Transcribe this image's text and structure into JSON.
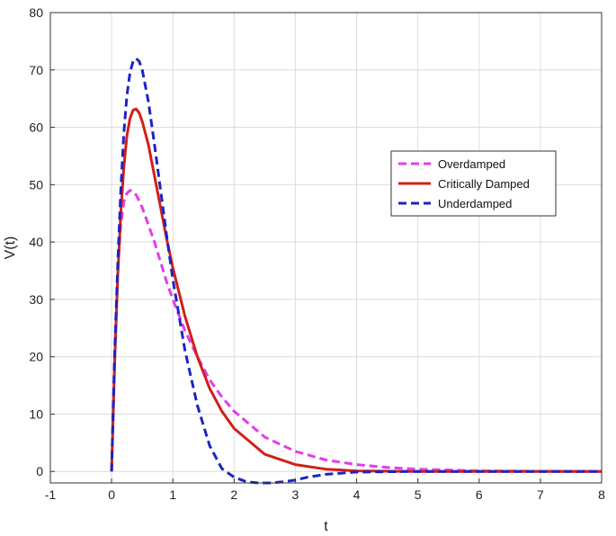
{
  "chart_data": {
    "type": "line",
    "xlabel": "t",
    "ylabel": "V(t)",
    "xlim": [
      -1,
      8
    ],
    "ylim": [
      -2,
      80
    ],
    "xticks": [
      -1,
      0,
      1,
      2,
      3,
      4,
      5,
      6,
      7,
      8
    ],
    "yticks": [
      0,
      10,
      20,
      30,
      40,
      50,
      60,
      70,
      80
    ],
    "xtick_labels": [
      "-1",
      "0",
      "1",
      "2",
      "3",
      "4",
      "5",
      "6",
      "7",
      "8"
    ],
    "ytick_labels": [
      "0",
      "10",
      "20",
      "30",
      "40",
      "50",
      "60",
      "70",
      "80"
    ],
    "grid": true,
    "legend_position": "right",
    "series": [
      {
        "name": "Overdamped",
        "color": "#e23de8",
        "dash": "dashed",
        "x": [
          0,
          0.05,
          0.1,
          0.15,
          0.2,
          0.25,
          0.3,
          0.35,
          0.4,
          0.45,
          0.5,
          0.6,
          0.7,
          0.8,
          0.9,
          1.0,
          1.2,
          1.4,
          1.6,
          1.8,
          2.0,
          2.5,
          3.0,
          3.5,
          4.0,
          4.5,
          5.0,
          6.0,
          7.0,
          8.0
        ],
        "y": [
          0,
          21,
          35,
          43,
          47,
          48.5,
          49,
          48.8,
          48.2,
          47.2,
          46,
          43,
          40,
          36.5,
          33,
          30,
          24.5,
          20,
          16,
          13,
          10.5,
          6,
          3.5,
          2,
          1.2,
          0.7,
          0.4,
          0.12,
          0.04,
          0
        ]
      },
      {
        "name": "Critically Damped",
        "color": "#d0201a",
        "dash": "solid",
        "x": [
          0,
          0.05,
          0.1,
          0.15,
          0.2,
          0.25,
          0.3,
          0.35,
          0.4,
          0.45,
          0.5,
          0.6,
          0.7,
          0.8,
          0.9,
          1.0,
          1.2,
          1.4,
          1.6,
          1.8,
          2.0,
          2.5,
          3.0,
          3.5,
          4.0,
          5.0,
          6.0,
          7.0,
          8.0
        ],
        "y": [
          0,
          19,
          34,
          45,
          53,
          58.5,
          61.5,
          63,
          63.2,
          62.5,
          61,
          57,
          51.5,
          46,
          40.5,
          35.5,
          27,
          20,
          14.5,
          10.5,
          7.5,
          3,
          1.2,
          0.4,
          0.1,
          0,
          0,
          0,
          0
        ]
      },
      {
        "name": "Underdamped",
        "color": "#1f24c2",
        "dash": "dashed",
        "x": [
          0,
          0.05,
          0.1,
          0.15,
          0.2,
          0.25,
          0.3,
          0.35,
          0.4,
          0.45,
          0.5,
          0.6,
          0.7,
          0.8,
          0.9,
          1.0,
          1.2,
          1.4,
          1.6,
          1.8,
          2.0,
          2.2,
          2.4,
          2.6,
          2.8,
          3.0,
          3.2,
          3.5,
          4.0,
          5.0,
          6.0,
          7.0,
          8.0
        ],
        "y": [
          0,
          20,
          36,
          49,
          59,
          65.5,
          69.5,
          71.5,
          72,
          71.5,
          70,
          64.5,
          57,
          49,
          41,
          33.5,
          21,
          11.5,
          4.5,
          0.5,
          -1,
          -1.8,
          -2,
          -2,
          -1.8,
          -1.5,
          -1,
          -0.5,
          -0.1,
          0,
          0,
          0,
          0
        ]
      }
    ]
  }
}
